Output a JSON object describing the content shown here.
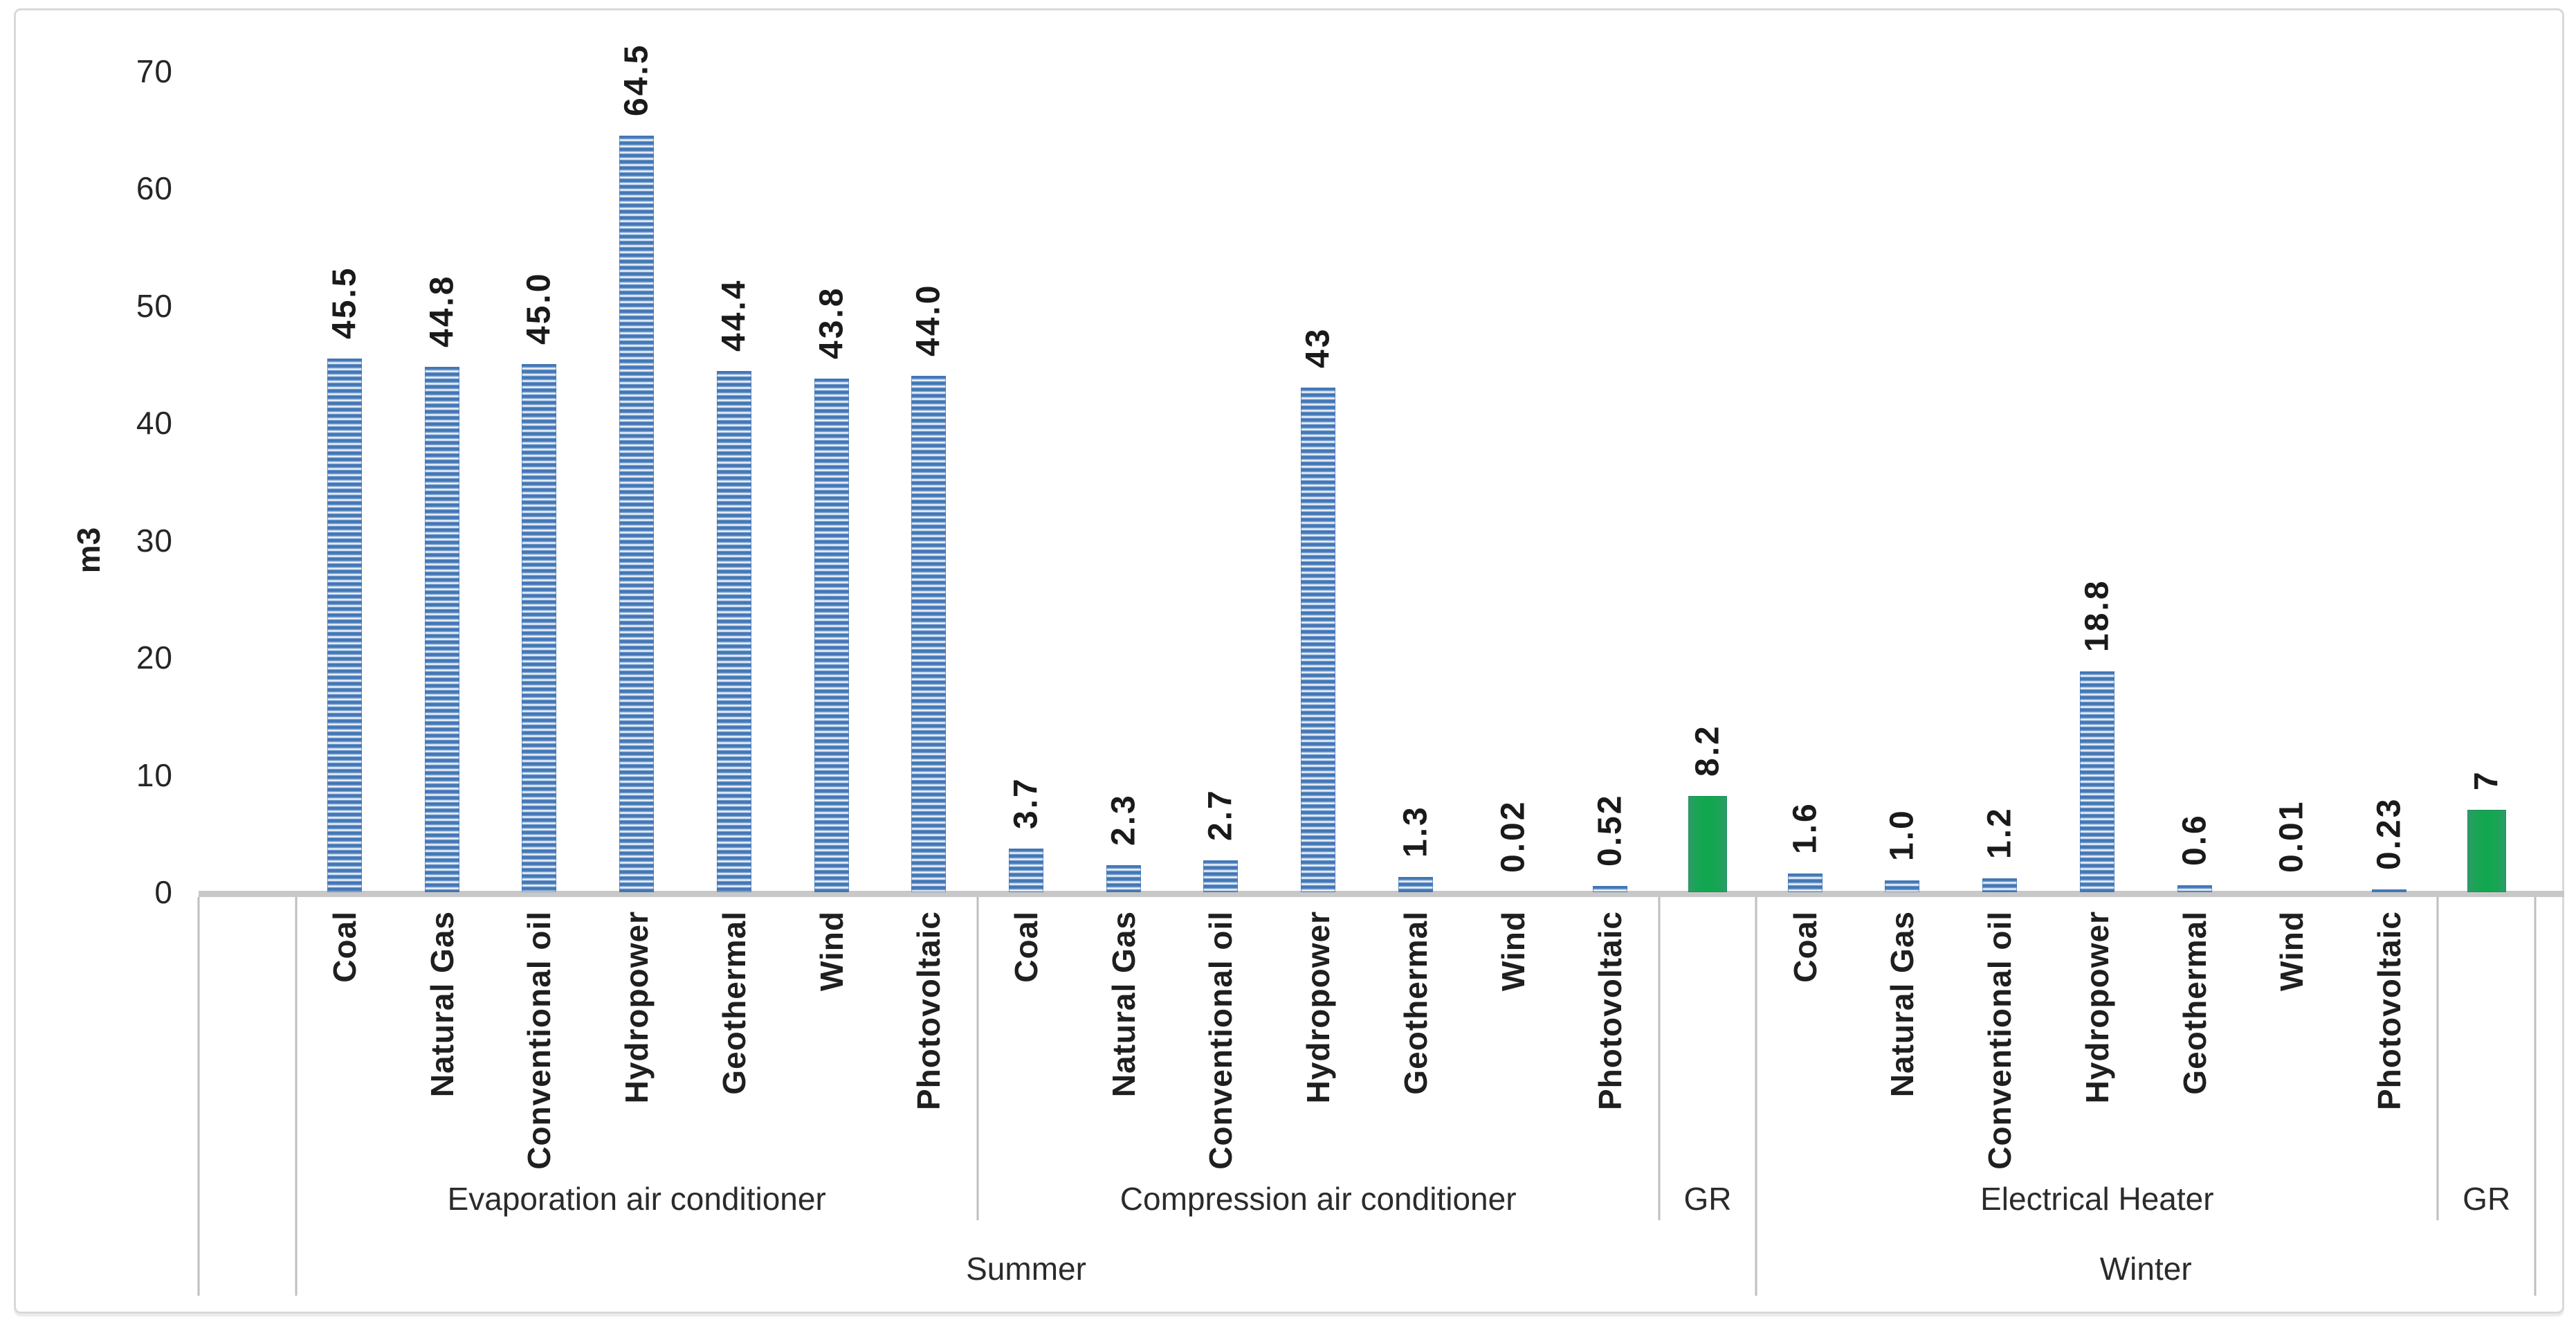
{
  "chart_data": {
    "type": "bar",
    "title": "",
    "xlabel": "",
    "ylabel": "m3",
    "ylim": [
      0,
      70
    ],
    "y_ticks": [
      0,
      10,
      20,
      30,
      40,
      50,
      60,
      70
    ],
    "grid": false,
    "legend": "none",
    "leading_empty_slots": 1,
    "colors": {
      "bar_blue": "#4377b6",
      "bar_blue_stripe_light": "#ffffff",
      "bar_green": "#0fa74e",
      "axis_line": "#bfbfbf",
      "baseline": "#c8c8c8",
      "text": "#1a1a1a"
    },
    "seasons": [
      {
        "label": "Summer",
        "groups": [
          {
            "label": "Evaporation air conditioner",
            "categories": [
              "Coal",
              "Natural Gas",
              "Conventional oil",
              "Hydropower",
              "Geothermal",
              "Wind",
              "Photovoltaic"
            ],
            "values": [
              45.5,
              44.8,
              45.0,
              64.5,
              44.4,
              43.8,
              44.0
            ],
            "value_labels": [
              "45.5",
              "44.8",
              "45.0",
              "64.5",
              "44.4",
              "43.8",
              "44.0"
            ],
            "bar_style": "blue-striped"
          },
          {
            "label": "Compression air conditioner",
            "categories": [
              "Coal",
              "Natural Gas",
              "Conventional oil",
              "Hydropower",
              "Geothermal",
              "Wind",
              "Photovoltaic"
            ],
            "values": [
              3.7,
              2.3,
              2.7,
              43,
              1.3,
              0.02,
              0.52
            ],
            "value_labels": [
              "3.7",
              "2.3",
              "2.7",
              "43",
              "1.3",
              "0.02",
              "0.52"
            ],
            "bar_style": "blue-striped"
          },
          {
            "label": "GR",
            "categories": [
              ""
            ],
            "values": [
              8.2
            ],
            "value_labels": [
              "8.2"
            ],
            "bar_style": "green-solid"
          }
        ]
      },
      {
        "label": "Winter",
        "groups": [
          {
            "label": "Electrical Heater",
            "categories": [
              "Coal",
              "Natural Gas",
              "Conventional oil",
              "Hydropower",
              "Geothermal",
              "Wind",
              "Photovoltaic"
            ],
            "values": [
              1.6,
              1.0,
              1.2,
              18.8,
              0.6,
              0.01,
              0.23
            ],
            "value_labels": [
              "1.6",
              "1.0",
              "1.2",
              "18.8",
              "0.6",
              "0.01",
              "0.23"
            ],
            "bar_style": "blue-striped"
          },
          {
            "label": "GR",
            "categories": [
              ""
            ],
            "values": [
              7
            ],
            "value_labels": [
              "7"
            ],
            "bar_style": "green-solid"
          }
        ]
      }
    ]
  }
}
